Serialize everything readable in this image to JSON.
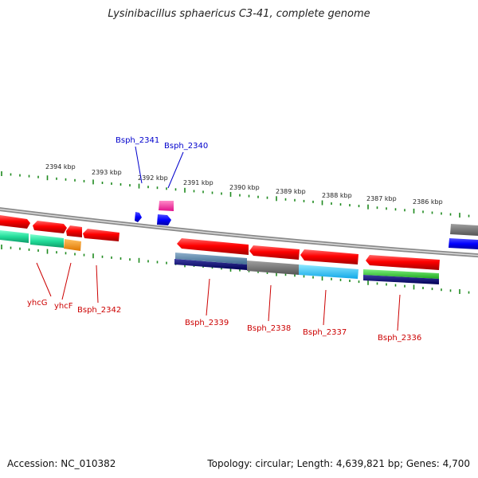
{
  "title": "Lysinibacillus sphaericus C3-41, complete genome",
  "footer": {
    "accession": "Accession: NC_010382",
    "summary": "Topology: circular; Length: 4,639,821 bp; Genes: 4,700"
  },
  "colors": {
    "tick": "#1f8a1f",
    "red_label": "#cc0000",
    "blue_label": "#0000cc",
    "backbone": "#8a8a8a"
  },
  "ticks": [
    {
      "label": "2394 kbp"
    },
    {
      "label": "2393 kbp"
    },
    {
      "label": "2392 kbp"
    },
    {
      "label": "2391 kbp"
    },
    {
      "label": "2390 kbp"
    },
    {
      "label": "2389 kbp"
    },
    {
      "label": "2388 kbp"
    },
    {
      "label": "2387 kbp"
    },
    {
      "label": "2386 kbp"
    }
  ],
  "labels": {
    "top": [
      {
        "name": "Bsph_2341"
      },
      {
        "name": "Bsph_2340"
      }
    ],
    "bottom": [
      {
        "name": "yhcG"
      },
      {
        "name": "yhcF"
      },
      {
        "name": "Bsph_2342"
      },
      {
        "name": "Bsph_2339"
      },
      {
        "name": "Bsph_2338"
      },
      {
        "name": "Bsph_2337"
      },
      {
        "name": "Bsph_2336"
      }
    ]
  }
}
